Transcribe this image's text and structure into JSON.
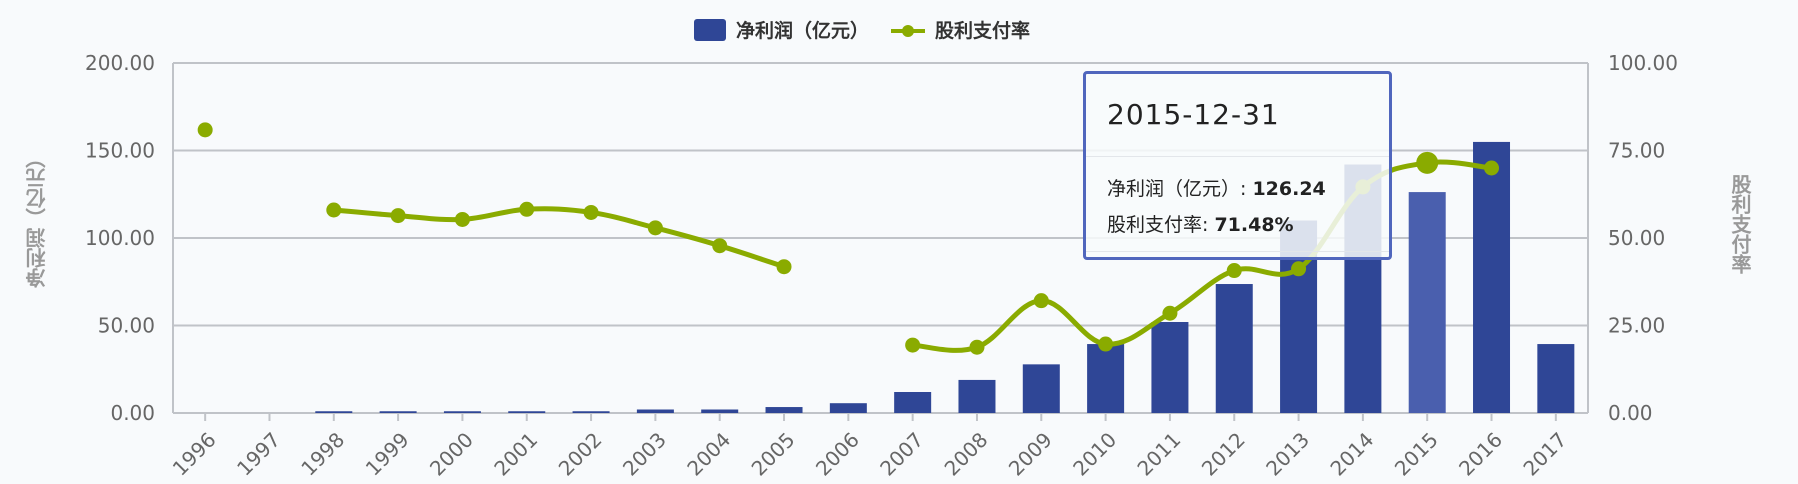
{
  "legend": {
    "bar_label": "净利润（亿元）",
    "line_label": "股利支付率"
  },
  "tooltip": {
    "title": "2015-12-31",
    "row1_label": "净利润（亿元）: ",
    "row1_value": "126.24",
    "row2_label": "股利支付率: ",
    "row2_value": "71.48%"
  },
  "axes": {
    "left_title": "净利润（亿元）",
    "right_title": "股利支付率"
  },
  "colors": {
    "bar": "#2f4696",
    "bar_highlight": "#4a5fae",
    "line": "#8aab00",
    "grid": "#c0c3c8",
    "axis_text": "#666666",
    "background": "#f8fafc"
  },
  "chart_data": {
    "type": "bar+line",
    "title": "",
    "categories": [
      "1996",
      "1997",
      "1998",
      "1999",
      "2000",
      "2001",
      "2002",
      "2003",
      "2004",
      "2005",
      "2006",
      "2007",
      "2008",
      "2009",
      "2010",
      "2011",
      "2012",
      "2013",
      "2014",
      "2015",
      "2016",
      "2017"
    ],
    "series": [
      {
        "name": "净利润（亿元）",
        "type": "bar",
        "axis": "left",
        "values": [
          null,
          null,
          1.0,
          1.0,
          1.0,
          1.0,
          1.0,
          2.0,
          2.0,
          3.4,
          5.6,
          12.0,
          18.9,
          27.8,
          39.4,
          52.0,
          73.7,
          110.0,
          142.0,
          126.24,
          154.9,
          39.4
        ]
      },
      {
        "name": "股利支付率",
        "type": "line",
        "axis": "right",
        "values": [
          80.9,
          null,
          58.0,
          56.4,
          55.3,
          58.2,
          57.3,
          52.9,
          47.8,
          41.8,
          null,
          19.4,
          18.8,
          32.1,
          19.7,
          28.5,
          40.7,
          41.2,
          64.6,
          71.48,
          70.0,
          null
        ]
      }
    ],
    "xlabel": "",
    "ylabel": "净利润（亿元）",
    "y2label": "股利支付率",
    "ylim": [
      0,
      200
    ],
    "y2lim": [
      0,
      100
    ],
    "yticks": [
      "0.00",
      "50.00",
      "100.00",
      "150.00",
      "200.00"
    ],
    "y2ticks": [
      "0.00",
      "25.00",
      "50.00",
      "75.00",
      "100.00"
    ],
    "grid": true,
    "legend_position": "top",
    "highlighted_category": "2015"
  }
}
